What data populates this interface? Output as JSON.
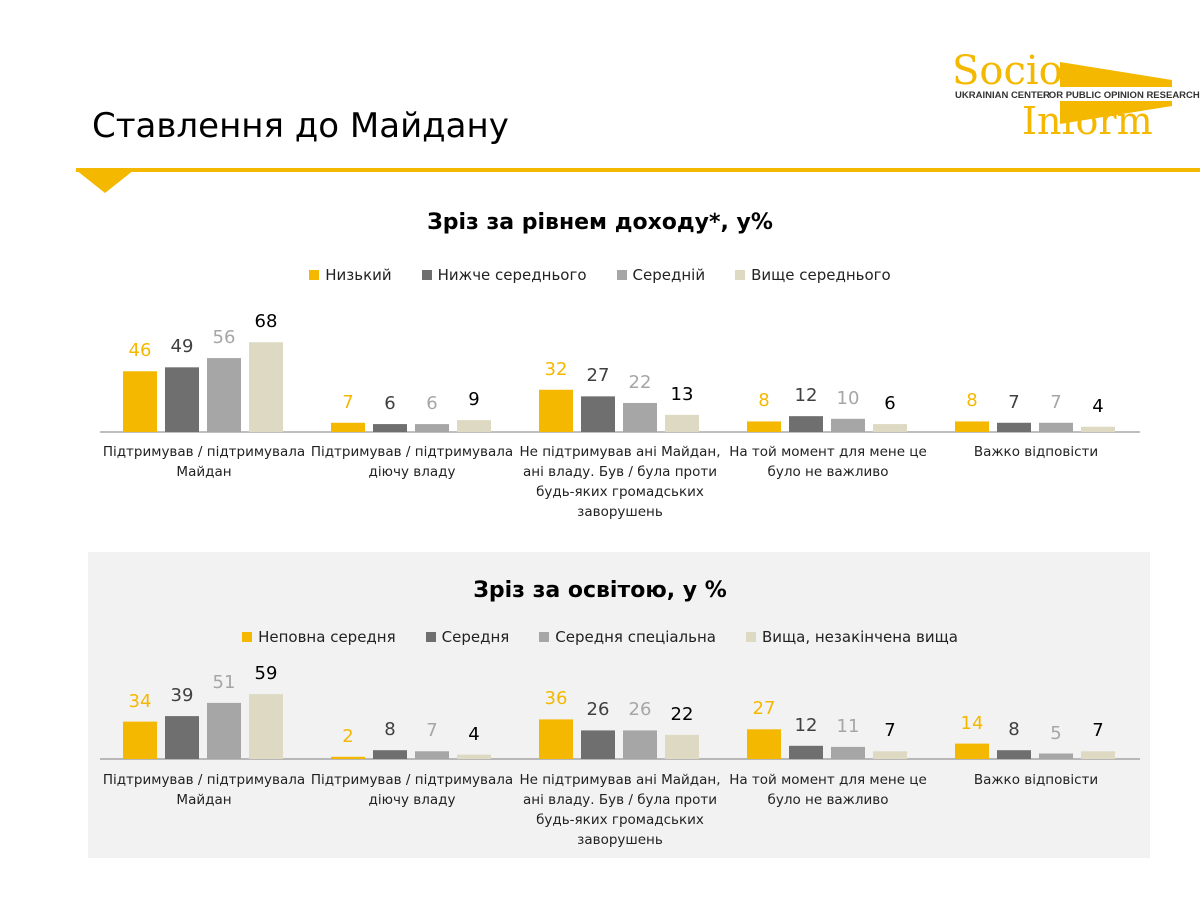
{
  "header": {
    "title": "Ставлення до Майдану",
    "logo": {
      "top": "Socio",
      "bottom": "Inform",
      "left_band": "UKRAINIAN CENTER",
      "right_band": "FOR PUBLIC OPINION RESEARCH"
    }
  },
  "chart_data": [
    {
      "type": "bar",
      "title": "Зріз за рівнем доходу*, у%",
      "categories": [
        "Підтримував / підтримувала Майдан",
        "Підтримував / підтримувала діючу владу",
        "Не підтримував ані Майдан, ані владу. Був / була проти будь-яких громадських заворушень",
        "На той момент для мене це було не важливо",
        "Важко відповісти"
      ],
      "series": [
        {
          "name": "Низький",
          "color": "#f5b800",
          "label_color": "#f5b800",
          "values": [
            46,
            7,
            32,
            8,
            8
          ]
        },
        {
          "name": "Нижче середнього",
          "color": "#6f6f6f",
          "label_color": "#404040",
          "values": [
            49,
            6,
            27,
            12,
            7
          ]
        },
        {
          "name": "Середній",
          "color": "#a6a6a6",
          "label_color": "#a6a6a6",
          "values": [
            56,
            6,
            22,
            10,
            7
          ]
        },
        {
          "name": "Вище середнього",
          "color": "#ddd9c3",
          "label_color": "#000000",
          "values": [
            68,
            9,
            13,
            6,
            4
          ]
        }
      ]
    },
    {
      "type": "bar",
      "title": "Зріз за освітою, у %",
      "categories": [
        "Підтримував / підтримувала Майдан",
        "Підтримував / підтримувала діючу владу",
        "Не підтримував ані Майдан, ані владу. Був / була проти будь-яких громадських заворушень",
        "На той момент для мене це було не важливо",
        "Важко відповісти"
      ],
      "series": [
        {
          "name": "Неповна середня",
          "color": "#f5b800",
          "label_color": "#f5b800",
          "values": [
            34,
            2,
            36,
            27,
            14
          ]
        },
        {
          "name": "Середня",
          "color": "#6f6f6f",
          "label_color": "#404040",
          "values": [
            39,
            8,
            26,
            12,
            8
          ]
        },
        {
          "name": "Середня спеціальна",
          "color": "#a6a6a6",
          "label_color": "#a6a6a6",
          "values": [
            51,
            7,
            26,
            11,
            5
          ]
        },
        {
          "name": "Вища, незакінчена вища",
          "color": "#ddd9c3",
          "label_color": "#000000",
          "values": [
            59,
            4,
            22,
            7,
            7
          ]
        }
      ]
    }
  ]
}
